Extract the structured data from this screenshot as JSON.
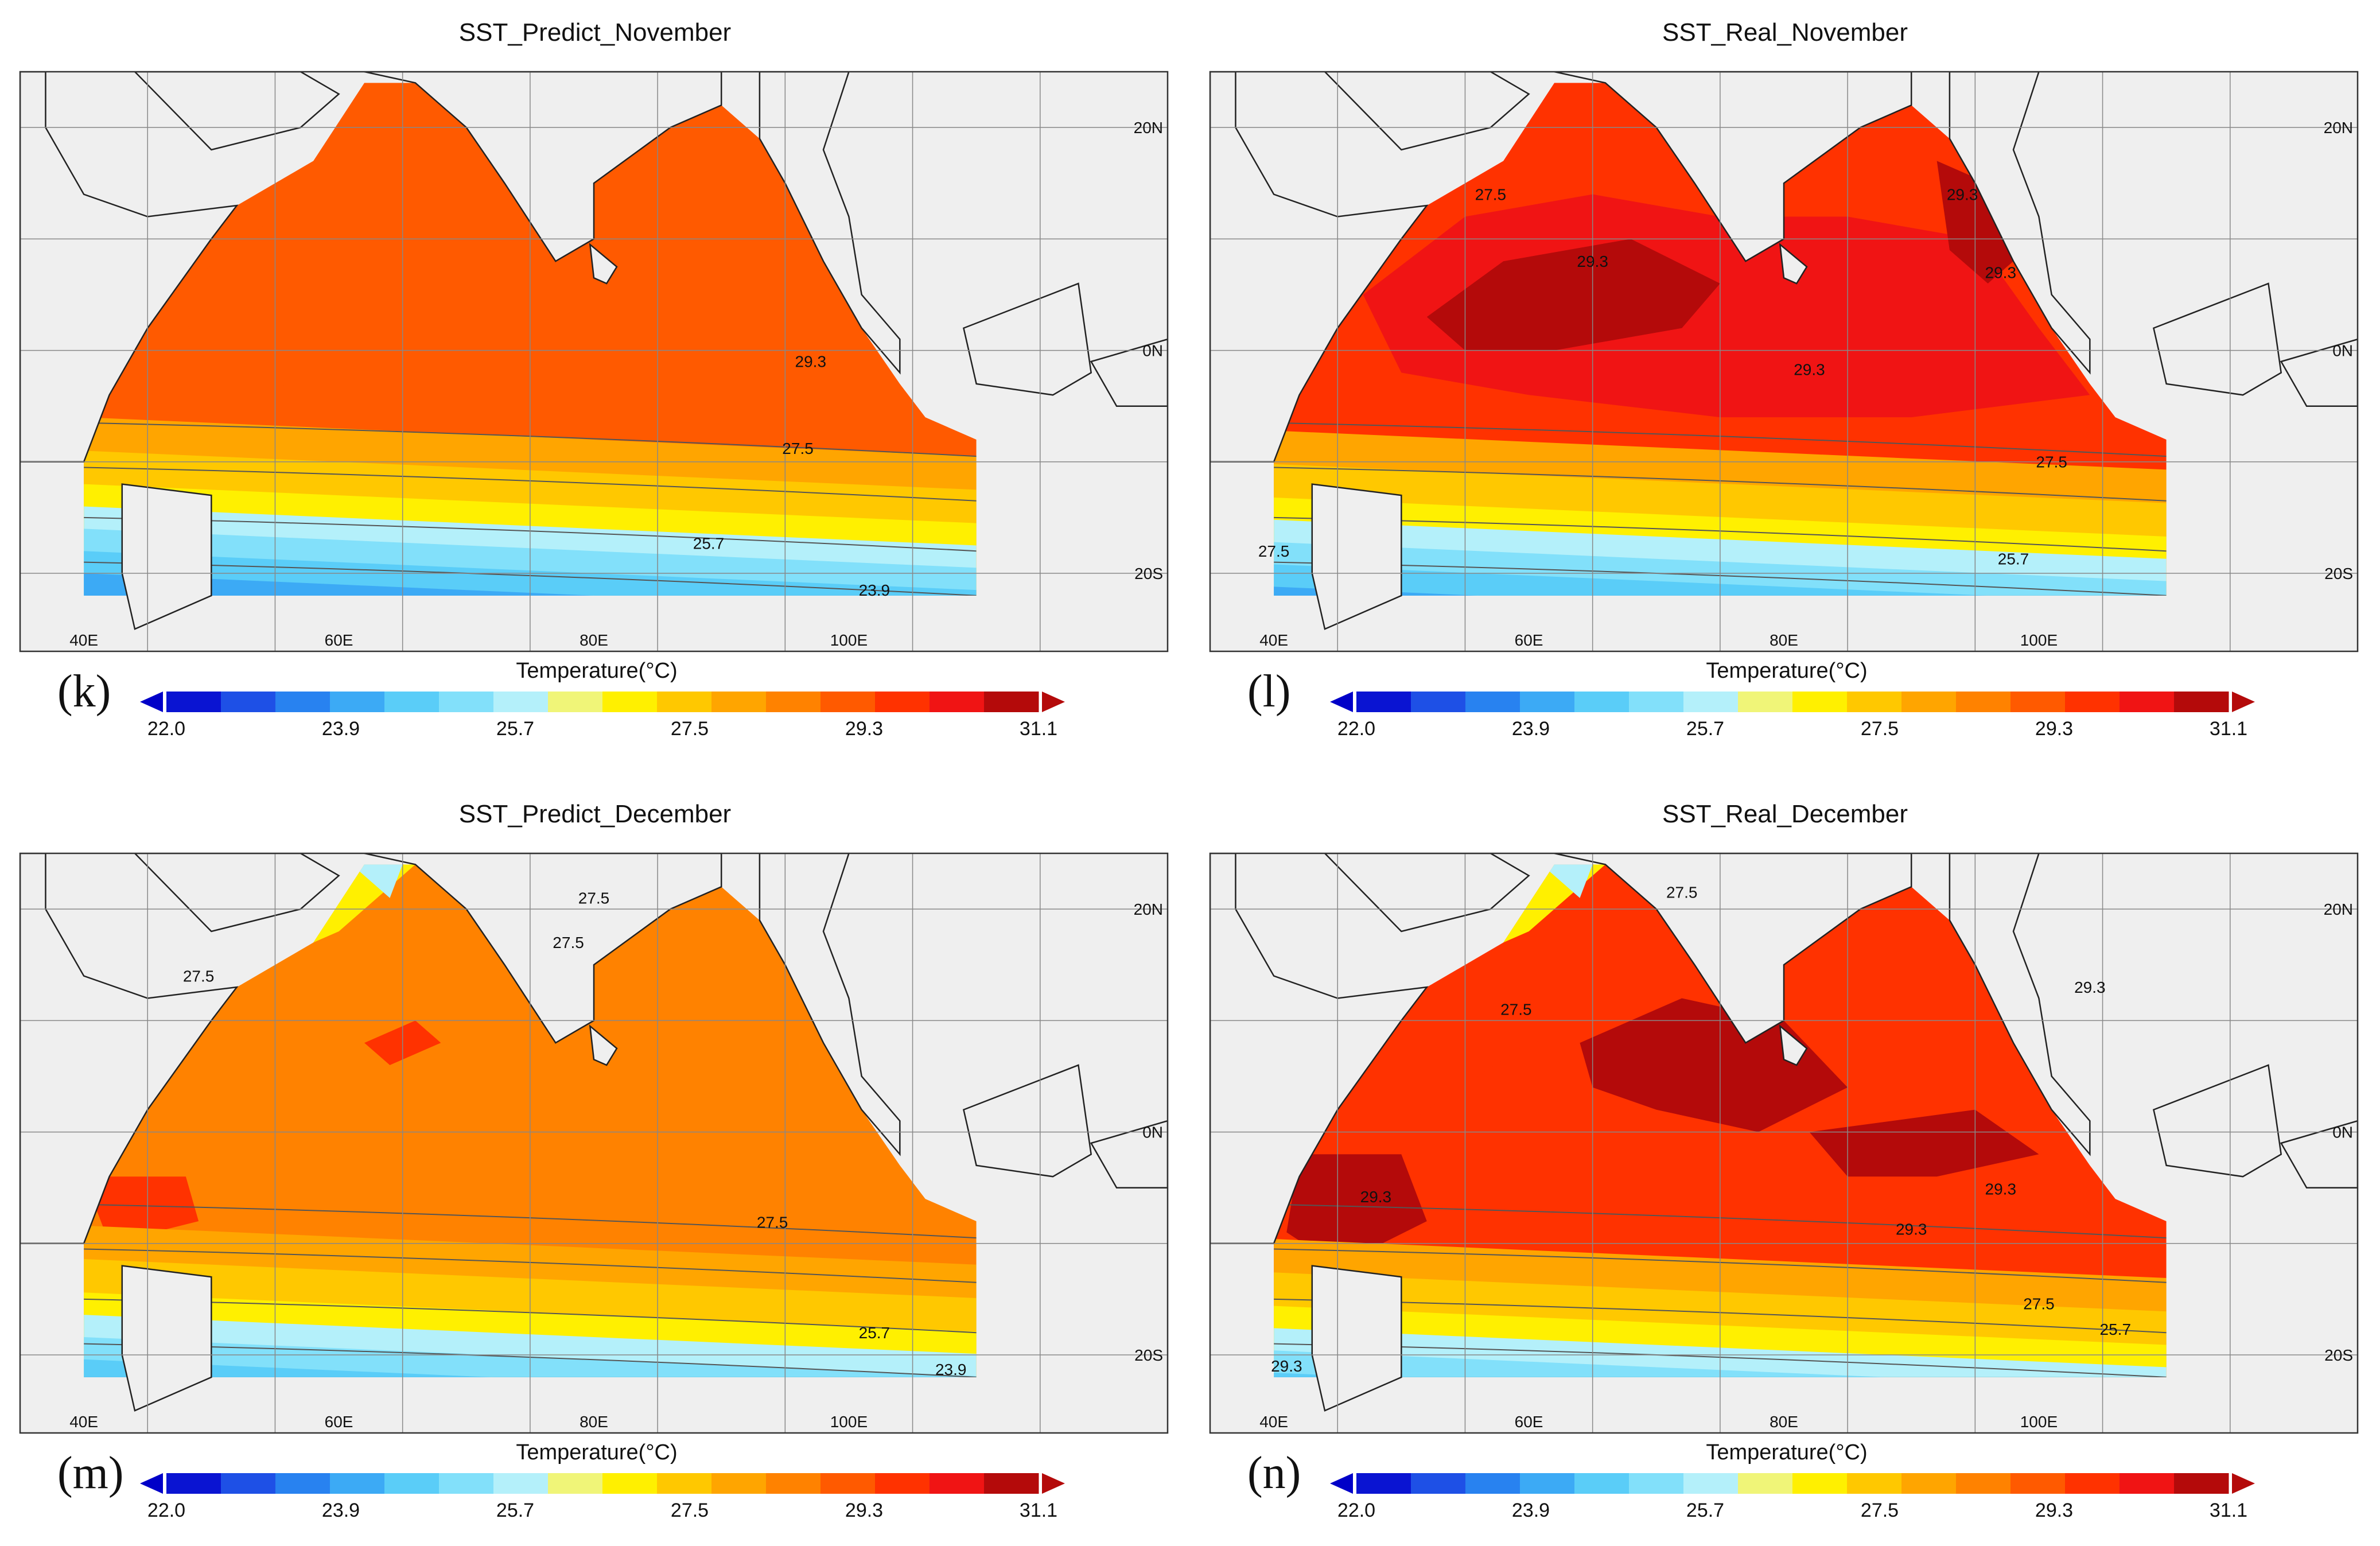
{
  "figure": {
    "colorbar": {
      "title": "Temperature(°C)",
      "ticks": [
        "22.0",
        "23.9",
        "25.7",
        "27.5",
        "29.3",
        "31.1"
      ],
      "colors": [
        "#0a14d2",
        "#1e50e6",
        "#2882f0",
        "#3caaf5",
        "#5acdf8",
        "#82e0fa",
        "#b4f0fa",
        "#f0f578",
        "#fff000",
        "#ffc800",
        "#ffa500",
        "#ff8200",
        "#ff5a00",
        "#ff3200",
        "#f01414",
        "#b40a0a"
      ],
      "arrow_low": "#0000c8",
      "arrow_high": "#b40a0a"
    },
    "map_axes": {
      "lon_labels": [
        "40E",
        "60E",
        "80E",
        "100E"
      ],
      "lat_labels": [
        "20N",
        "0N",
        "20S"
      ]
    },
    "panels": [
      {
        "id": "k",
        "label": "(k)",
        "title": "SST_Predict_November",
        "contour_labels": [
          "29.3",
          "27.5",
          "25.7",
          "23.9"
        ]
      },
      {
        "id": "l",
        "label": "(l)",
        "title": "SST_Real_November",
        "contour_labels": [
          "27.5",
          "29.3",
          "29.3",
          "29.3",
          "29.3",
          "27.5",
          "27.5",
          "25.7"
        ]
      },
      {
        "id": "m",
        "label": "(m)",
        "title": "SST_Predict_December",
        "contour_labels": [
          "27.5",
          "27.5",
          "27.5",
          "27.5",
          "25.7",
          "23.9"
        ]
      },
      {
        "id": "n",
        "label": "(n)",
        "title": "SST_Real_December",
        "contour_labels": [
          "27.5",
          "27.5",
          "29.3",
          "29.3",
          "29.3",
          "29.3",
          "27.5",
          "25.7",
          "29.3"
        ]
      }
    ]
  }
}
